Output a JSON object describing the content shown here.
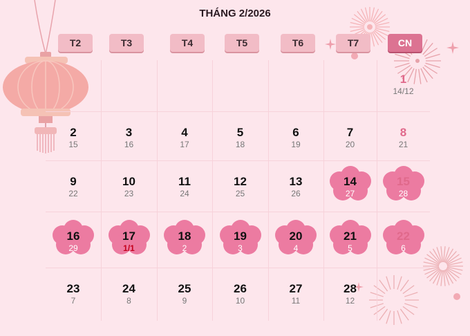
{
  "calendar": {
    "title": "THÁNG 2/2026",
    "weekdays": [
      "T2",
      "T3",
      "T4",
      "T5",
      "T6",
      "T7",
      "CN"
    ]
  },
  "colors": {
    "background": "#fde6ec",
    "header": "#f2bcc6",
    "sunday_header": "#dc7392",
    "flower": "#ec7ba1",
    "sunday_text": "#e0698b",
    "lunar_new_year": "#c4001d"
  },
  "days": [
    {
      "solar": "1",
      "lunar": "14/12",
      "highlight": false
    },
    {
      "solar": "2",
      "lunar": "15",
      "highlight": false
    },
    {
      "solar": "3",
      "lunar": "16",
      "highlight": false
    },
    {
      "solar": "4",
      "lunar": "17",
      "highlight": false
    },
    {
      "solar": "5",
      "lunar": "18",
      "highlight": false
    },
    {
      "solar": "6",
      "lunar": "19",
      "highlight": false
    },
    {
      "solar": "7",
      "lunar": "20",
      "highlight": false
    },
    {
      "solar": "8",
      "lunar": "21",
      "highlight": false
    },
    {
      "solar": "9",
      "lunar": "22",
      "highlight": false
    },
    {
      "solar": "10",
      "lunar": "23",
      "highlight": false
    },
    {
      "solar": "11",
      "lunar": "24",
      "highlight": false
    },
    {
      "solar": "12",
      "lunar": "25",
      "highlight": false
    },
    {
      "solar": "13",
      "lunar": "26",
      "highlight": false
    },
    {
      "solar": "14",
      "lunar": "27",
      "highlight": true
    },
    {
      "solar": "15",
      "lunar": "28",
      "highlight": true
    },
    {
      "solar": "16",
      "lunar": "29",
      "highlight": true
    },
    {
      "solar": "17",
      "lunar": "1/1",
      "highlight": true
    },
    {
      "solar": "18",
      "lunar": "2",
      "highlight": true
    },
    {
      "solar": "19",
      "lunar": "3",
      "highlight": true
    },
    {
      "solar": "20",
      "lunar": "4",
      "highlight": true
    },
    {
      "solar": "21",
      "lunar": "5",
      "highlight": true
    },
    {
      "solar": "22",
      "lunar": "6",
      "highlight": true
    },
    {
      "solar": "23",
      "lunar": "7",
      "highlight": false
    },
    {
      "solar": "24",
      "lunar": "8",
      "highlight": false
    },
    {
      "solar": "25",
      "lunar": "9",
      "highlight": false
    },
    {
      "solar": "26",
      "lunar": "10",
      "highlight": false
    },
    {
      "solar": "27",
      "lunar": "11",
      "highlight": false
    },
    {
      "solar": "28",
      "lunar": "12",
      "highlight": false
    }
  ]
}
